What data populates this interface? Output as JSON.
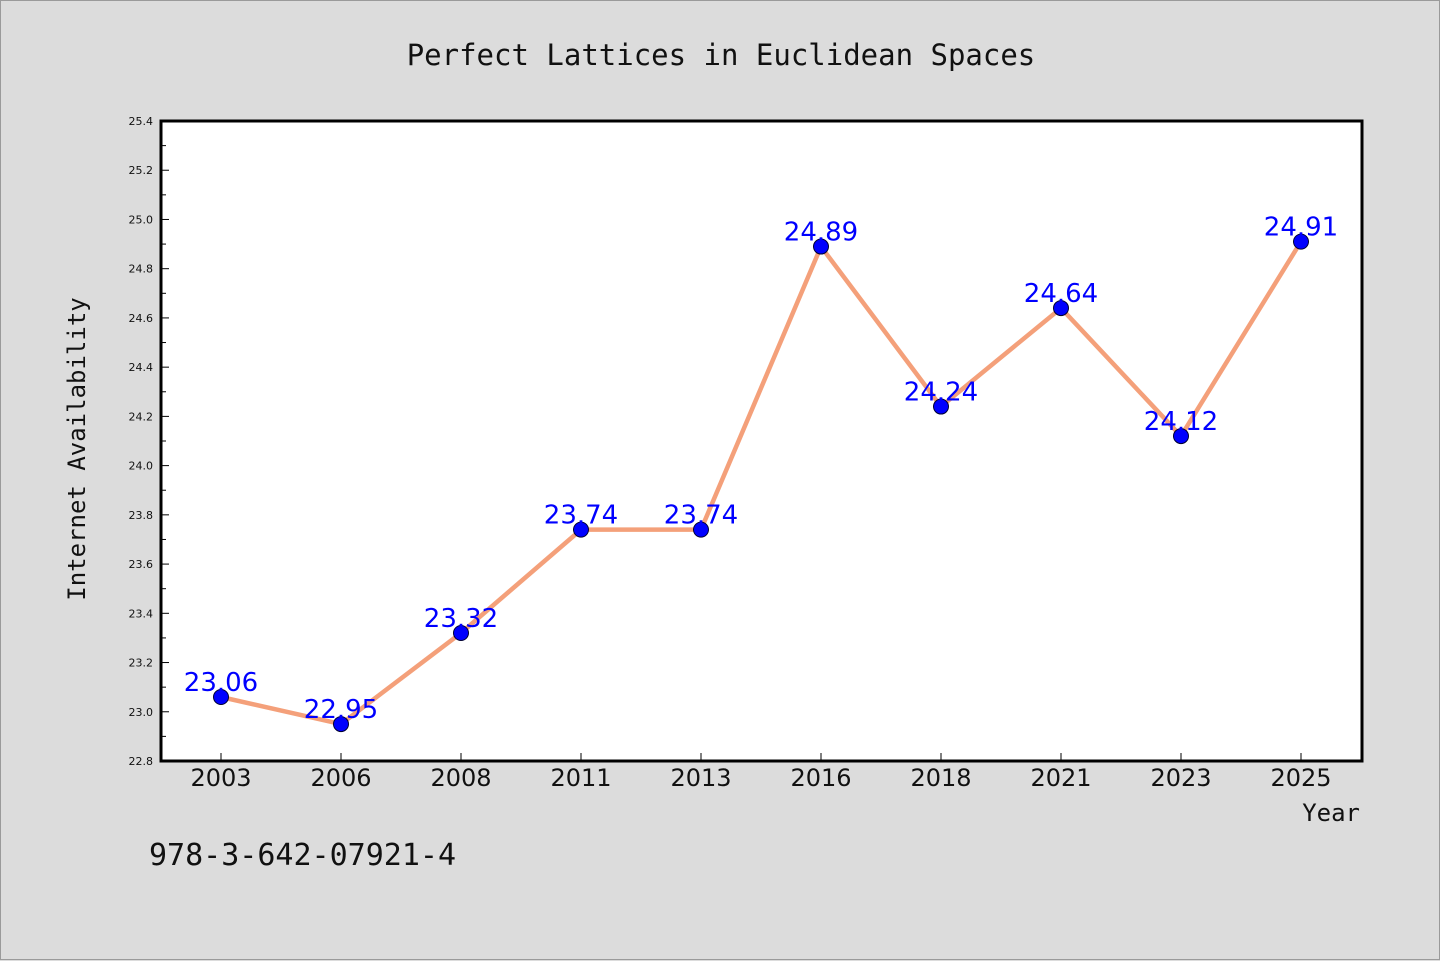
{
  "chart_data": {
    "type": "line",
    "title": "Perfect Lattices in Euclidean Spaces",
    "xlabel": "Year",
    "ylabel": "Internet Availability",
    "categories": [
      "2003",
      "2006",
      "2008",
      "2011",
      "2013",
      "2016",
      "2018",
      "2021",
      "2023",
      "2025"
    ],
    "series": [
      {
        "values": [
          23.06,
          22.95,
          23.32,
          23.74,
          23.74,
          24.89,
          24.24,
          24.64,
          24.12,
          24.91
        ],
        "labels": [
          "23.06",
          "22.95",
          "23.32",
          "23.74",
          "23.74",
          "24.89",
          "24.24",
          "24.64",
          "24.12",
          "24.91"
        ]
      }
    ],
    "ylim": [
      22.8,
      25.4
    ],
    "yticks": [
      "22.8",
      "23.0",
      "23.2",
      "23.4",
      "23.6",
      "23.8",
      "24.0",
      "24.2",
      "24.4",
      "24.6",
      "24.8",
      "25.0",
      "25.2",
      "25.4"
    ],
    "grid": false,
    "legend": "none",
    "colors": {
      "line": "#f4a07a",
      "marker": "#0000ff",
      "data_label": "#0000ff",
      "background": "#dcdcdc",
      "plot_background": "#ffffff"
    }
  },
  "annotation": "978-3-642-07921-4"
}
